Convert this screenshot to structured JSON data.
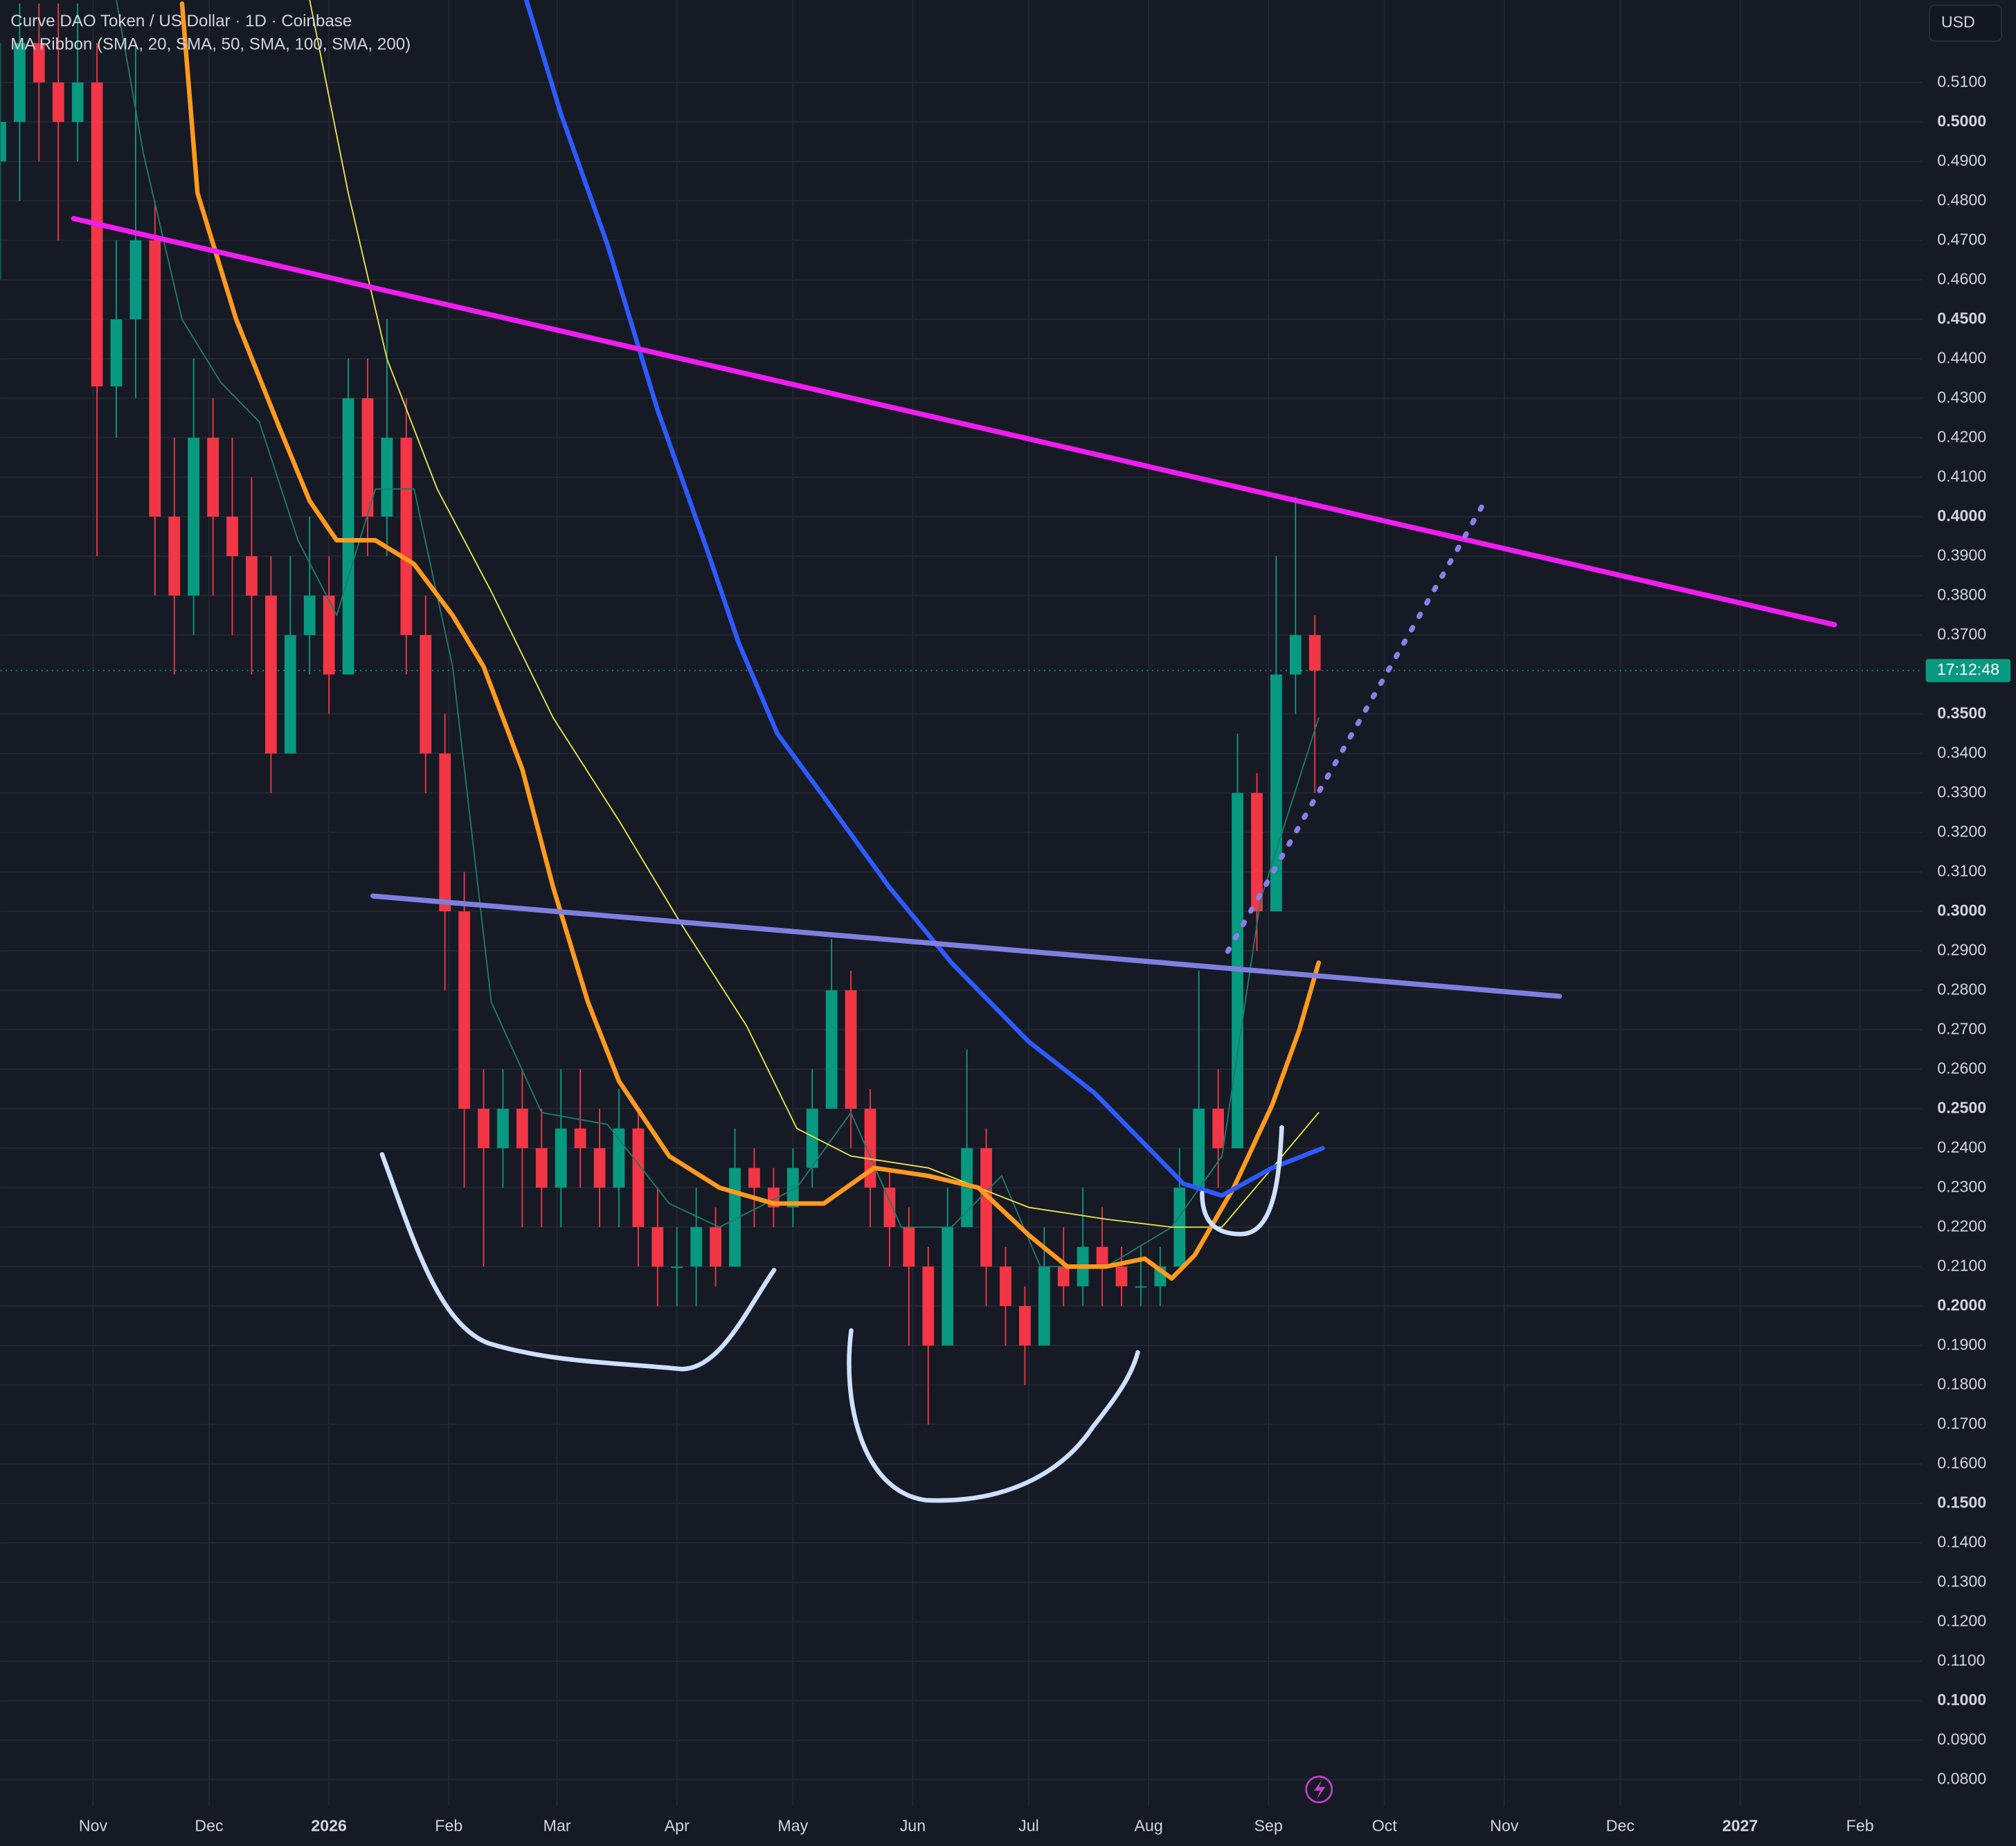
{
  "chart_data": {
    "type": "candlestick",
    "title": "Curve DAO Token / US Dollar · 1D · Coinbase",
    "subtitle": "MA Ribbon (SMA, 20, SMA, 50, SMA, 100, SMA, 200)",
    "currency": "USD",
    "countdown": "17:12:48",
    "up_color": "#089981",
    "down_color": "#f23645",
    "countdown_color": "#089981",
    "grid": true,
    "xlim": [
      0,
      497
    ],
    "ylim": [
      0.0733,
      0.5309
    ],
    "xticks": [
      {
        "value": 24,
        "label": "Nov"
      },
      {
        "value": 54,
        "label": "Dec"
      },
      {
        "value": 85,
        "label": "2026"
      },
      {
        "value": 116,
        "label": "Feb"
      },
      {
        "value": 144,
        "label": "Mar"
      },
      {
        "value": 175,
        "label": "Apr"
      },
      {
        "value": 205,
        "label": "May"
      },
      {
        "value": 236,
        "label": "Jun"
      },
      {
        "value": 266,
        "label": "Jul"
      },
      {
        "value": 297,
        "label": "Aug"
      },
      {
        "value": 328,
        "label": "Sep"
      },
      {
        "value": 358,
        "label": "Oct"
      },
      {
        "value": 389,
        "label": "Nov"
      },
      {
        "value": 419,
        "label": "Dec"
      },
      {
        "value": 450,
        "label": "2027"
      },
      {
        "value": 481,
        "label": "Feb"
      }
    ],
    "yticks": [
      {
        "value": 0.51,
        "label": "0.5100"
      },
      {
        "value": 0.5,
        "label": "0.5000"
      },
      {
        "value": 0.49,
        "label": "0.4900"
      },
      {
        "value": 0.48,
        "label": "0.4800"
      },
      {
        "value": 0.47,
        "label": "0.4700"
      },
      {
        "value": 0.46,
        "label": "0.4600"
      },
      {
        "value": 0.45,
        "label": "0.4500"
      },
      {
        "value": 0.44,
        "label": "0.4400"
      },
      {
        "value": 0.43,
        "label": "0.4300"
      },
      {
        "value": 0.42,
        "label": "0.4200"
      },
      {
        "value": 0.41,
        "label": "0.4100"
      },
      {
        "value": 0.4,
        "label": "0.4000"
      },
      {
        "value": 0.39,
        "label": "0.3900"
      },
      {
        "value": 0.38,
        "label": "0.3800"
      },
      {
        "value": 0.37,
        "label": "0.3700"
      },
      {
        "value": 0.35,
        "label": "0.3500"
      },
      {
        "value": 0.34,
        "label": "0.3400"
      },
      {
        "value": 0.33,
        "label": "0.3300"
      },
      {
        "value": 0.32,
        "label": "0.3200"
      },
      {
        "value": 0.31,
        "label": "0.3100"
      },
      {
        "value": 0.3,
        "label": "0.3000"
      },
      {
        "value": 0.29,
        "label": "0.2900"
      },
      {
        "value": 0.28,
        "label": "0.2800"
      },
      {
        "value": 0.27,
        "label": "0.2700"
      },
      {
        "value": 0.26,
        "label": "0.2600"
      },
      {
        "value": 0.25,
        "label": "0.2500"
      },
      {
        "value": 0.24,
        "label": "0.2400"
      },
      {
        "value": 0.23,
        "label": "0.2300"
      },
      {
        "value": 0.22,
        "label": "0.2200"
      },
      {
        "value": 0.21,
        "label": "0.2100"
      },
      {
        "value": 0.2,
        "label": "0.2000"
      },
      {
        "value": 0.19,
        "label": "0.1900"
      },
      {
        "value": 0.18,
        "label": "0.1800"
      },
      {
        "value": 0.17,
        "label": "0.1700"
      },
      {
        "value": 0.16,
        "label": "0.1600"
      },
      {
        "value": 0.15,
        "label": "0.1500"
      },
      {
        "value": 0.14,
        "label": "0.1400"
      },
      {
        "value": 0.13,
        "label": "0.1300"
      },
      {
        "value": 0.12,
        "label": "0.1200"
      },
      {
        "value": 0.11,
        "label": "0.1100"
      },
      {
        "value": 0.1,
        "label": "0.1000"
      },
      {
        "value": 0.09,
        "label": "0.0900"
      },
      {
        "value": 0.08,
        "label": "0.0800"
      }
    ],
    "x": [
      0,
      5,
      10,
      15,
      20,
      25,
      30,
      35,
      40,
      45,
      50,
      55,
      60,
      65,
      70,
      75,
      80,
      85,
      90,
      95,
      100,
      105,
      110,
      115,
      120,
      125,
      130,
      135,
      140,
      145,
      150,
      155,
      160,
      165,
      170,
      175,
      180,
      185,
      190,
      195,
      200,
      205,
      210,
      215,
      220,
      225,
      230,
      235,
      240,
      245,
      250,
      255,
      260,
      265,
      270,
      275,
      280,
      285,
      290,
      295,
      300,
      305,
      310,
      315,
      320,
      325,
      330,
      335,
      340
    ],
    "open": [
      0.49,
      0.5,
      0.52,
      0.51,
      0.5,
      0.51,
      0.433,
      0.45,
      0.47,
      0.4,
      0.38,
      0.42,
      0.4,
      0.39,
      0.38,
      0.34,
      0.37,
      0.38,
      0.36,
      0.43,
      0.4,
      0.42,
      0.37,
      0.34,
      0.3,
      0.25,
      0.24,
      0.25,
      0.24,
      0.23,
      0.245,
      0.24,
      0.23,
      0.245,
      0.22,
      0.21,
      0.21,
      0.22,
      0.21,
      0.235,
      0.23,
      0.225,
      0.235,
      0.25,
      0.28,
      0.25,
      0.23,
      0.22,
      0.21,
      0.19,
      0.22,
      0.24,
      0.21,
      0.2,
      0.19,
      0.21,
      0.205,
      0.215,
      0.21,
      0.205,
      0.205,
      0.21,
      0.23,
      0.25,
      0.24,
      0.33,
      0.3,
      0.36,
      0.37
    ],
    "high": [
      0.52,
      0.53,
      0.53,
      0.53,
      0.53,
      0.52,
      0.47,
      0.52,
      0.48,
      0.42,
      0.44,
      0.43,
      0.42,
      0.41,
      0.39,
      0.39,
      0.4,
      0.39,
      0.44,
      0.44,
      0.45,
      0.43,
      0.38,
      0.35,
      0.31,
      0.26,
      0.26,
      0.26,
      0.25,
      0.26,
      0.26,
      0.25,
      0.255,
      0.25,
      0.23,
      0.22,
      0.23,
      0.225,
      0.245,
      0.24,
      0.235,
      0.24,
      0.26,
      0.293,
      0.285,
      0.255,
      0.235,
      0.225,
      0.215,
      0.23,
      0.265,
      0.245,
      0.215,
      0.205,
      0.22,
      0.22,
      0.23,
      0.225,
      0.215,
      0.215,
      0.215,
      0.24,
      0.285,
      0.26,
      0.345,
      0.335,
      0.39,
      0.405,
      0.375
    ],
    "low": [
      0.46,
      0.48,
      0.49,
      0.47,
      0.49,
      0.39,
      0.42,
      0.43,
      0.38,
      0.36,
      0.37,
      0.38,
      0.37,
      0.36,
      0.33,
      0.34,
      0.36,
      0.35,
      0.36,
      0.39,
      0.39,
      0.36,
      0.33,
      0.28,
      0.23,
      0.21,
      0.23,
      0.22,
      0.22,
      0.22,
      0.23,
      0.22,
      0.22,
      0.21,
      0.2,
      0.2,
      0.2,
      0.205,
      0.21,
      0.22,
      0.22,
      0.22,
      0.23,
      0.25,
      0.24,
      0.22,
      0.21,
      0.19,
      0.17,
      0.19,
      0.22,
      0.2,
      0.19,
      0.18,
      0.19,
      0.2,
      0.2,
      0.2,
      0.2,
      0.2,
      0.2,
      0.21,
      0.23,
      0.23,
      0.24,
      0.29,
      0.3,
      0.35,
      0.33
    ],
    "close": [
      0.5,
      0.52,
      0.51,
      0.5,
      0.51,
      0.433,
      0.45,
      0.47,
      0.4,
      0.38,
      0.42,
      0.4,
      0.39,
      0.38,
      0.34,
      0.37,
      0.38,
      0.36,
      0.43,
      0.4,
      0.42,
      0.37,
      0.34,
      0.3,
      0.25,
      0.24,
      0.25,
      0.24,
      0.23,
      0.245,
      0.24,
      0.23,
      0.245,
      0.22,
      0.21,
      0.21,
      0.22,
      0.21,
      0.235,
      0.23,
      0.225,
      0.235,
      0.25,
      0.28,
      0.25,
      0.23,
      0.22,
      0.21,
      0.19,
      0.22,
      0.24,
      0.21,
      0.2,
      0.19,
      0.21,
      0.205,
      0.215,
      0.21,
      0.205,
      0.205,
      0.21,
      0.23,
      0.25,
      0.24,
      0.33,
      0.3,
      0.36,
      0.37,
      0.361
    ],
    "lines": [
      {
        "color": "#1f7a6a",
        "width": 1,
        "x": [
          30,
          37,
          47,
          57,
          67,
          77,
          87,
          97,
          107,
          117,
          127,
          140,
          157,
          173,
          186,
          206,
          220,
          233,
          246,
          259,
          269,
          286,
          303,
          316,
          326,
          341
        ],
        "values": [
          0.531,
          0.492,
          0.45,
          0.434,
          0.424,
          0.394,
          0.375,
          0.407,
          0.407,
          0.362,
          0.277,
          0.249,
          0.246,
          0.226,
          0.22,
          0.23,
          0.249,
          0.22,
          0.22,
          0.233,
          0.21,
          0.21,
          0.22,
          0.238,
          0.303,
          0.349
        ]
      },
      {
        "color": "#e8e34a",
        "width": 1,
        "x": [
          80,
          90,
          100,
          113,
          127,
          143,
          160,
          176,
          193,
          206,
          220,
          240,
          266,
          286,
          303,
          316,
          329,
          341
        ],
        "values": [
          0.531,
          0.482,
          0.44,
          0.407,
          0.381,
          0.349,
          0.323,
          0.297,
          0.271,
          0.245,
          0.238,
          0.235,
          0.225,
          0.222,
          0.22,
          0.22,
          0.235,
          0.249
        ]
      },
      {
        "color": "#ff9a1f",
        "width": 3.5,
        "x": [
          47,
          51,
          61,
          72,
          80,
          87,
          97,
          107,
          117,
          125,
          135,
          143,
          152,
          160,
          173,
          186,
          200,
          213,
          226,
          240,
          253,
          266,
          276,
          286,
          296,
          303,
          309,
          319,
          329,
          336,
          341
        ],
        "values": [
          0.53,
          0.482,
          0.45,
          0.423,
          0.404,
          0.394,
          0.394,
          0.388,
          0.375,
          0.362,
          0.336,
          0.306,
          0.277,
          0.257,
          0.238,
          0.23,
          0.226,
          0.226,
          0.235,
          0.233,
          0.23,
          0.218,
          0.21,
          0.21,
          0.212,
          0.207,
          0.213,
          0.23,
          0.251,
          0.27,
          0.287
        ]
      },
      {
        "color": "#2d5bff",
        "width": 3.5,
        "x": [
          136,
          145,
          157,
          170,
          183,
          191,
          201,
          213,
          230,
          246,
          266,
          283,
          296,
          306,
          316,
          329,
          342
        ],
        "values": [
          0.531,
          0.502,
          0.469,
          0.427,
          0.391,
          0.368,
          0.345,
          0.329,
          0.306,
          0.287,
          0.267,
          0.254,
          0.241,
          0.231,
          0.228,
          0.235,
          0.24
        ]
      }
    ]
  }
}
